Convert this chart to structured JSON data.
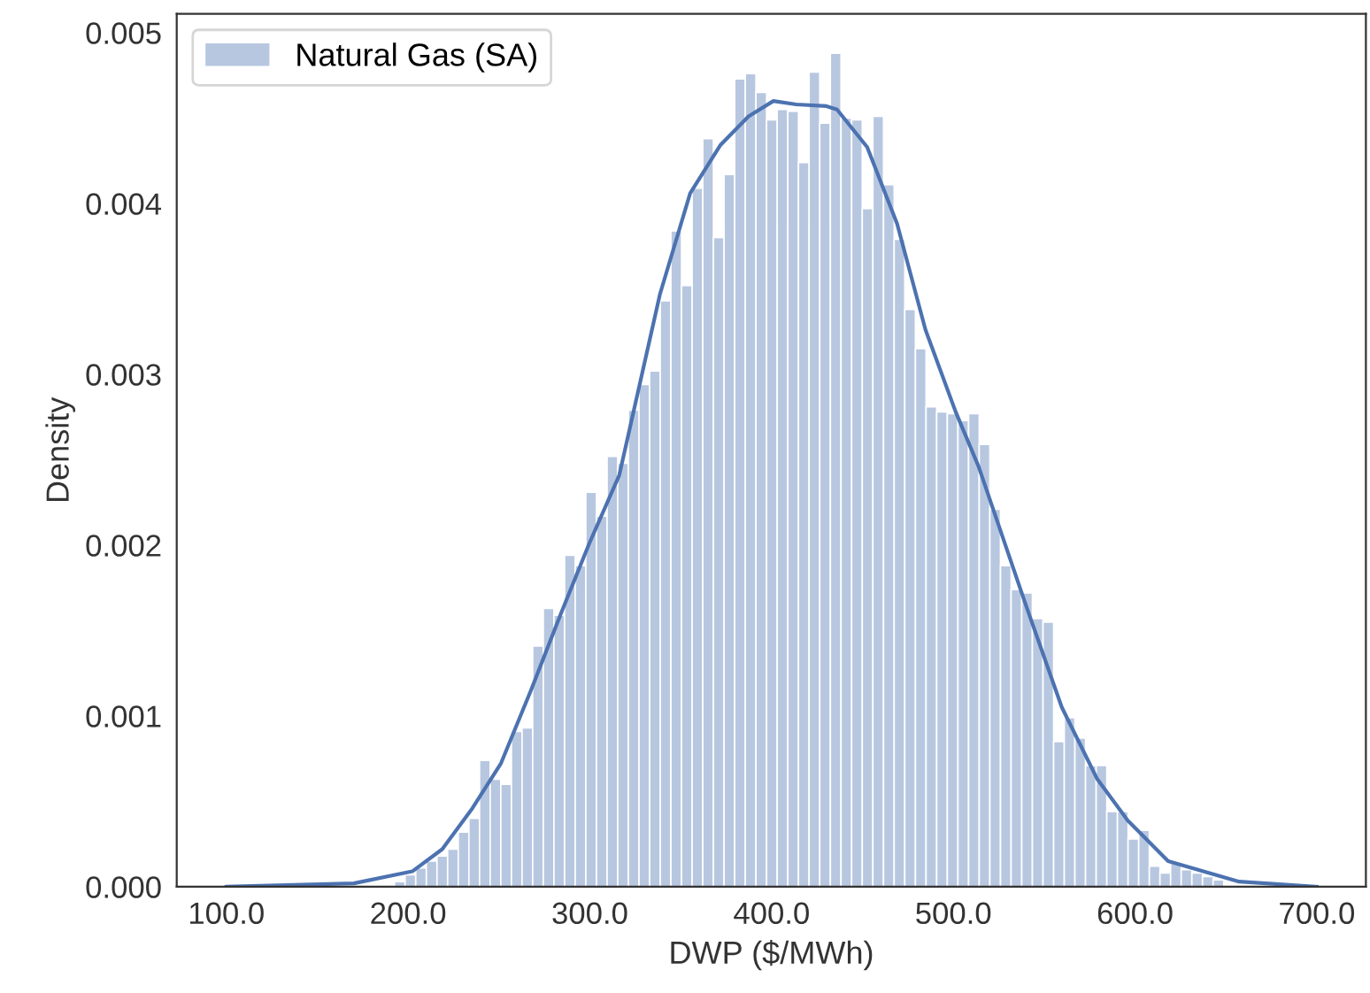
{
  "chart_data": {
    "type": "histogram",
    "xlabel": "DWP ($/MWh)",
    "ylabel": "Density",
    "xlim": [
      72.7,
      727
    ],
    "ylim": [
      0,
      0.00511
    ],
    "xticks": [
      {
        "value": 100,
        "label": "100.0"
      },
      {
        "value": 200,
        "label": "200.0"
      },
      {
        "value": 300,
        "label": "300.0"
      },
      {
        "value": 400,
        "label": "400.0"
      },
      {
        "value": 500,
        "label": "500.0"
      },
      {
        "value": 600,
        "label": "600.0"
      },
      {
        "value": 700,
        "label": "700.0"
      }
    ],
    "yticks": [
      {
        "value": 0,
        "label": "0.000"
      },
      {
        "value": 0.001,
        "label": "0.001"
      },
      {
        "value": 0.002,
        "label": "0.002"
      },
      {
        "value": 0.003,
        "label": "0.003"
      },
      {
        "value": 0.004,
        "label": "0.004"
      },
      {
        "value": 0.005,
        "label": "0.005"
      }
    ],
    "grid": false,
    "legend": "top left",
    "bins": [
      192.5,
      198.35,
      204.2,
      210.05,
      215.9,
      221.75,
      227.6,
      233.45,
      239.3,
      245.15,
      251.0,
      256.85,
      262.7,
      268.55,
      274.4,
      280.25,
      286.1,
      291.95,
      297.8,
      303.65,
      309.5,
      315.35,
      321.2,
      327.05,
      332.9,
      338.75,
      344.6,
      350.45,
      356.3,
      362.15,
      368.0,
      373.85,
      379.7,
      385.55,
      391.4,
      397.25,
      403.1,
      408.95,
      414.8,
      420.65,
      426.5,
      432.35,
      438.2,
      444.05,
      449.9,
      455.75,
      461.6,
      467.45,
      473.3,
      479.15,
      485.0,
      490.85,
      496.7,
      502.55,
      508.4,
      514.25,
      520.1,
      525.95,
      531.8,
      537.65,
      543.5,
      549.35,
      555.2,
      561.05,
      566.9,
      572.75,
      578.6,
      584.45,
      590.3,
      596.15,
      602.0,
      607.85,
      613.7,
      619.55,
      625.4,
      631.25,
      637.1,
      642.95,
      648.8
    ],
    "series": [
      {
        "name": "Natural Gas (SA)",
        "color": "#b8c7e0",
        "values": [
          3e-05,
          7e-05,
          0.00011,
          0.00015,
          0.00018,
          0.00022,
          0.00032,
          0.0004,
          0.00074,
          0.00063,
          0.0006,
          0.00091,
          0.00093,
          0.00141,
          0.00163,
          0.00159,
          0.00194,
          0.00188,
          0.00231,
          0.00217,
          0.00252,
          0.00248,
          0.00279,
          0.00294,
          0.00302,
          0.00343,
          0.00384,
          0.00352,
          0.00409,
          0.00438,
          0.0038,
          0.00417,
          0.00473,
          0.00476,
          0.00465,
          0.00449,
          0.00455,
          0.00454,
          0.00424,
          0.00477,
          0.00447,
          0.00488,
          0.0045,
          0.00449,
          0.00397,
          0.00451,
          0.00411,
          0.00379,
          0.00338,
          0.00315,
          0.00281,
          0.00278,
          0.00277,
          0.00273,
          0.00277,
          0.00259,
          0.00221,
          0.00188,
          0.00174,
          0.00172,
          0.00157,
          0.00155,
          0.00085,
          0.00099,
          0.00087,
          0.00071,
          0.00071,
          0.00044,
          0.00044,
          0.00028,
          0.00033,
          0.00012,
          8e-05,
          0.00014,
          0.0001,
          8e-05,
          6e-05,
          4e-05
        ]
      },
      {
        "type": "line",
        "color": "#4c72b0",
        "x": [
          100,
          170.1,
          202.3,
          218.8,
          235.4,
          251.0,
          267.6,
          284.1,
          299.7,
          316.2,
          338.6,
          355.2,
          371.7,
          387.3,
          401.0,
          413.6,
          430.2,
          436.0,
          452.6,
          469.1,
          484.7,
          501.3,
          513.9,
          540.2,
          559.7,
          579.2,
          595.8,
          618.2,
          657.3,
          700
        ],
        "values": [
          0,
          2e-05,
          9e-05,
          0.00022,
          0.00046,
          0.00072,
          0.00115,
          0.0016,
          0.00201,
          0.00241,
          0.00347,
          0.00406,
          0.00434,
          0.00451,
          0.0046,
          0.00458,
          0.00457,
          0.00455,
          0.00433,
          0.00388,
          0.00326,
          0.00278,
          0.00246,
          0.00164,
          0.00105,
          0.00063,
          0.00039,
          0.00015,
          3e-05,
          0
        ]
      }
    ]
  }
}
